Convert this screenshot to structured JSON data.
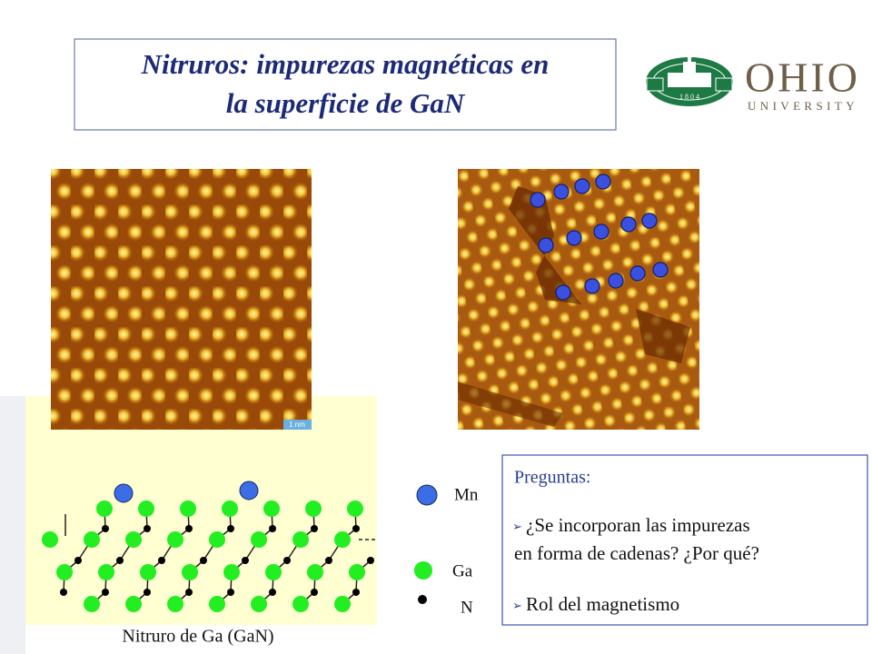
{
  "header": {
    "title_lines": [
      "Nitruros: impurezas magnéticas en",
      "la superficie de GaN"
    ]
  },
  "logo": {
    "name": "OHIO",
    "subtitle": "UNIVERSITY",
    "year": "1 8 0 4"
  },
  "images": {
    "scale_bar": "1 nm"
  },
  "legend": {
    "items": [
      "Mn",
      "Ga",
      "N"
    ]
  },
  "diagram": {
    "caption": "Nitruro de Ga (GaN)"
  },
  "questions": {
    "heading": "Preguntas:",
    "items": [
      [
        "¿Se incorporan las impurezas",
        "en forma de cadenas? ¿Por qué?"
      ],
      [
        "Rol del magnetismo"
      ]
    ]
  }
}
